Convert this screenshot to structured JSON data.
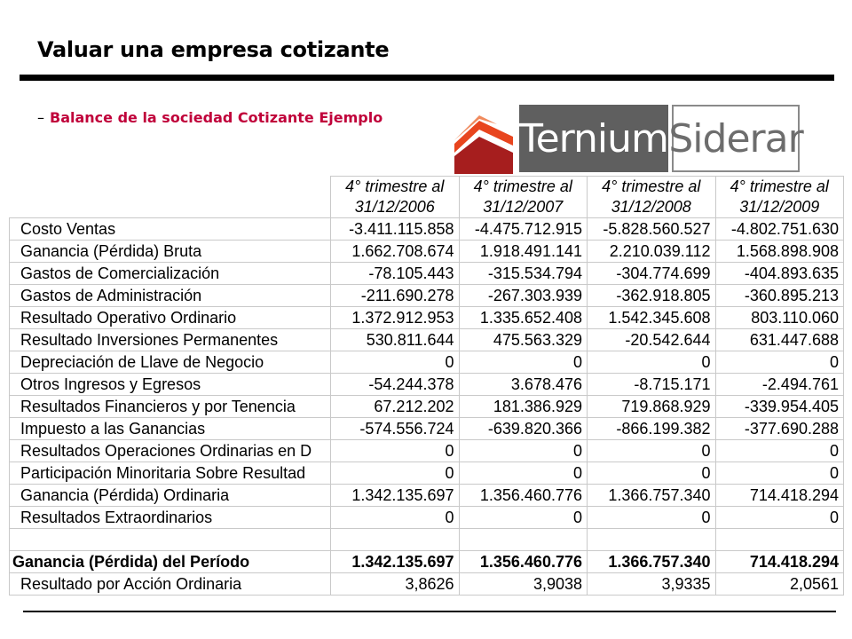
{
  "title": "Valuar una empresa cotizante",
  "subtitle": {
    "bullet": "–",
    "text": "Balance de la sociedad Cotizante Ejemplo"
  },
  "logo": {
    "text1": "Ternium",
    "text2": "Siderar",
    "colors": {
      "orange": "#e8451e",
      "dark_red": "#a61e1e",
      "gray": "#5f5f5f"
    }
  },
  "table": {
    "headers": [
      [
        "4° trimestre al",
        "31/12/2006"
      ],
      [
        "4° trimestre al",
        "31/12/2007"
      ],
      [
        "4° trimestre al",
        "31/12/2008"
      ],
      [
        "4° trimestre al",
        "31/12/2009"
      ]
    ],
    "rows": [
      {
        "label": "Costo Ventas",
        "values": [
          "-3.411.115.858",
          "-4.475.712.915",
          "-5.828.560.527",
          "-4.802.751.630"
        ]
      },
      {
        "label": "Ganancia (Pérdida) Bruta",
        "values": [
          "1.662.708.674",
          "1.918.491.141",
          "2.210.039.112",
          "1.568.898.908"
        ]
      },
      {
        "label": "Gastos de Comercialización",
        "values": [
          "-78.105.443",
          "-315.534.794",
          "-304.774.699",
          "-404.893.635"
        ]
      },
      {
        "label": "Gastos de Administración",
        "values": [
          "-211.690.278",
          "-267.303.939",
          "-362.918.805",
          "-360.895.213"
        ]
      },
      {
        "label": "Resultado Operativo Ordinario",
        "values": [
          "1.372.912.953",
          "1.335.652.408",
          "1.542.345.608",
          "803.110.060"
        ]
      },
      {
        "label": "Resultado Inversiones Permanentes",
        "values": [
          "530.811.644",
          "475.563.329",
          "-20.542.644",
          "631.447.688"
        ]
      },
      {
        "label": "Depreciación de Llave de Negocio",
        "values": [
          "0",
          "0",
          "0",
          "0"
        ]
      },
      {
        "label": "Otros Ingresos y Egresos",
        "values": [
          "-54.244.378",
          "3.678.476",
          "-8.715.171",
          "-2.494.761"
        ]
      },
      {
        "label": "Resultados Financieros y por Tenencia",
        "values": [
          "67.212.202",
          "181.386.929",
          "719.868.929",
          "-339.954.405"
        ]
      },
      {
        "label": "Impuesto a las Ganancias",
        "values": [
          "-574.556.724",
          "-639.820.366",
          "-866.199.382",
          "-377.690.288"
        ]
      },
      {
        "label": "Resultados Operaciones Ordinarias en D",
        "values": [
          "0",
          "0",
          "0",
          "0"
        ]
      },
      {
        "label": "Participación Minoritaria Sobre Resultad",
        "values": [
          "0",
          "0",
          "0",
          "0"
        ]
      },
      {
        "label": "Ganancia (Pérdida) Ordinaria",
        "values": [
          "1.342.135.697",
          "1.356.460.776",
          "1.366.757.340",
          "714.418.294"
        ]
      },
      {
        "label": "Resultados Extraordinarios",
        "values": [
          "0",
          "0",
          "0",
          "0"
        ]
      }
    ],
    "total": {
      "label": "Ganancia (Pérdida) del Período",
      "values": [
        "1.342.135.697",
        "1.356.460.776",
        "1.366.757.340",
        "714.418.294"
      ]
    },
    "per_share": {
      "label": "Resultado por Acción Ordinaria",
      "values": [
        "3,8626",
        "3,9038",
        "3,9335",
        "2,0561"
      ]
    }
  }
}
